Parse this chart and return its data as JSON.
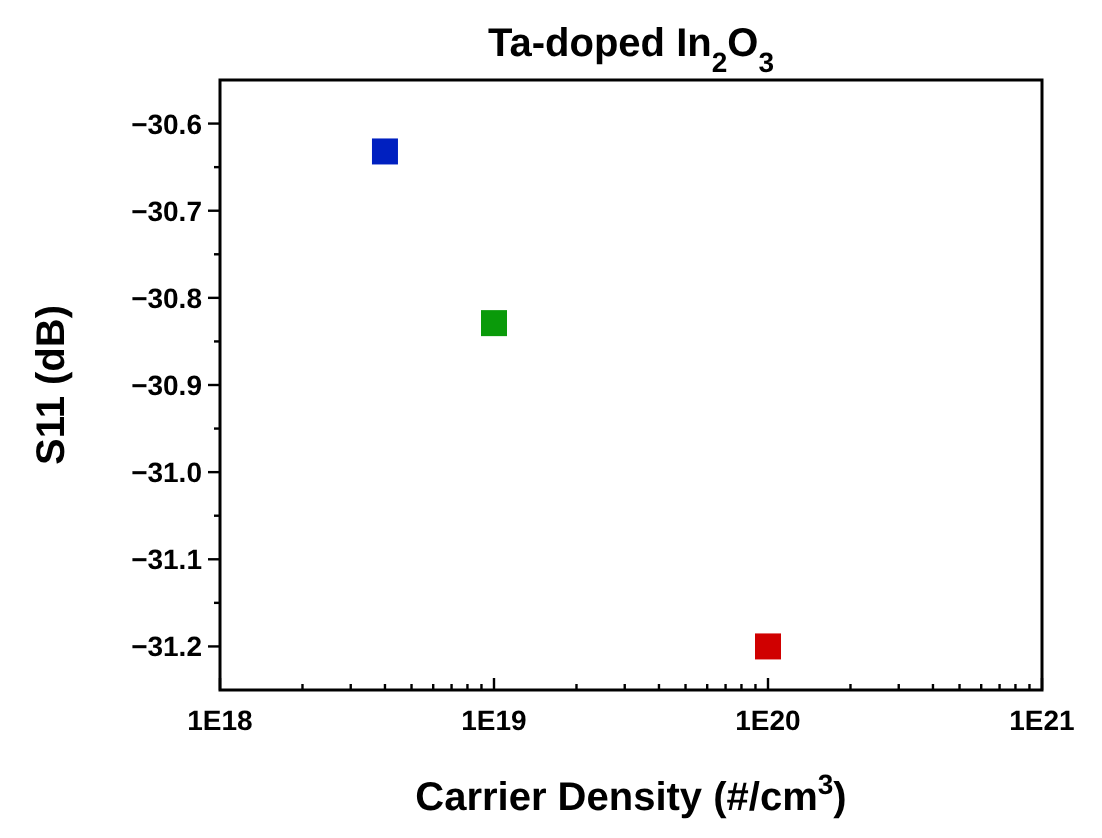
{
  "chart_data": {
    "type": "scatter",
    "title": "Ta-doped In$_{2}$O$_{3}$",
    "xlabel": "Carrier Density (#/cm$^{3}$)",
    "ylabel": "S11 (dB)",
    "x": [
      4e+18,
      1e+19,
      1e+20
    ],
    "values": [
      -30.632,
      -30.829,
      -31.2
    ],
    "colors": [
      "#0020c0",
      "#0a9a0a",
      "#d00000"
    ],
    "marker": "square",
    "log": "x",
    "grid": false,
    "xlim": [
      1e+18,
      1e+21
    ],
    "ylim": [
      -31.25,
      -30.55
    ],
    "xticks": [
      {
        "value": 1e+18,
        "label": "1E18"
      },
      {
        "value": 2e+18,
        "label": null
      },
      {
        "value": 3e+18,
        "label": null
      },
      {
        "value": 4e+18,
        "label": null
      },
      {
        "value": 5e+18,
        "label": null
      },
      {
        "value": 6e+18,
        "label": null
      },
      {
        "value": 7e+18,
        "label": null
      },
      {
        "value": 8e+18,
        "label": null
      },
      {
        "value": 9e+18,
        "label": null
      },
      {
        "value": 1e+19,
        "label": "1E19"
      },
      {
        "value": 2e+19,
        "label": null
      },
      {
        "value": 3e+19,
        "label": null
      },
      {
        "value": 4e+19,
        "label": null
      },
      {
        "value": 5e+19,
        "label": null
      },
      {
        "value": 6e+19,
        "label": null
      },
      {
        "value": 7e+19,
        "label": null
      },
      {
        "value": 8e+19,
        "label": null
      },
      {
        "value": 9e+19,
        "label": null
      },
      {
        "value": 1e+20,
        "label": "1E20"
      },
      {
        "value": 2e+20,
        "label": null
      },
      {
        "value": 3e+20,
        "label": null
      },
      {
        "value": 4e+20,
        "label": null
      },
      {
        "value": 5e+20,
        "label": null
      },
      {
        "value": 6e+20,
        "label": null
      },
      {
        "value": 7e+20,
        "label": null
      },
      {
        "value": 8e+20,
        "label": null
      },
      {
        "value": 9e+20,
        "label": null
      },
      {
        "value": 1e+21,
        "label": "1E21"
      }
    ],
    "yticks": [
      {
        "value": -30.6,
        "label": "−30.6"
      },
      {
        "value": -30.65,
        "label": null
      },
      {
        "value": -30.7,
        "label": "−30.7"
      },
      {
        "value": -30.75,
        "label": null
      },
      {
        "value": -30.8,
        "label": "−30.8"
      },
      {
        "value": -30.85,
        "label": null
      },
      {
        "value": -30.9,
        "label": "−30.9"
      },
      {
        "value": -30.95,
        "label": null
      },
      {
        "value": -31.0,
        "label": "−31.0"
      },
      {
        "value": -31.05,
        "label": null
      },
      {
        "value": -31.1,
        "label": "−31.1"
      },
      {
        "value": -31.15,
        "label": null
      },
      {
        "value": -31.2,
        "label": "−31.2"
      }
    ]
  }
}
